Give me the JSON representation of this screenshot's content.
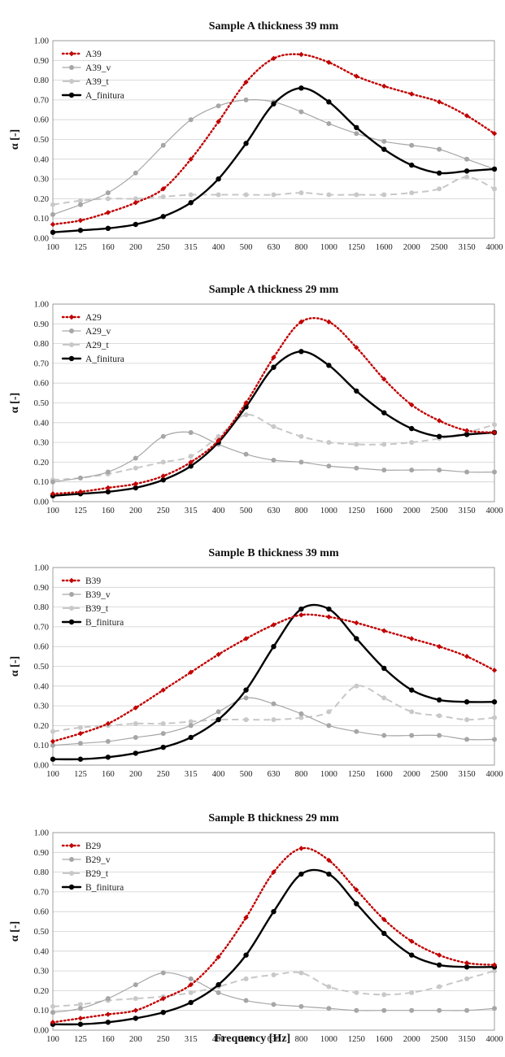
{
  "xaxis_title": "Frequency [Hz]",
  "chart_data": [
    {
      "type": "line",
      "title": "Sample A thickness 39 mm",
      "ylabel": "α [-]",
      "xlabel": "",
      "categories": [
        "100",
        "125",
        "160",
        "200",
        "250",
        "315",
        "400",
        "500",
        "630",
        "800",
        "1000",
        "1250",
        "1600",
        "2000",
        "2500",
        "3150",
        "4000"
      ],
      "ylim": [
        0,
        1.0
      ],
      "yticks": [
        "0.00",
        "0.10",
        "0.20",
        "0.30",
        "0.40",
        "0.50",
        "0.60",
        "0.70",
        "0.80",
        "0.90",
        "1.00"
      ],
      "grid": true,
      "legend": "top-left",
      "series": [
        {
          "name": "A39",
          "style": "dotted",
          "color": "#c00000",
          "values": [
            0.07,
            0.09,
            0.13,
            0.18,
            0.25,
            0.4,
            0.59,
            0.79,
            0.91,
            0.93,
            0.89,
            0.82,
            0.77,
            0.73,
            0.69,
            0.62,
            0.53
          ]
        },
        {
          "name": "A39_v",
          "style": "solid-thin",
          "color": "#a6a6a6",
          "values": [
            0.12,
            0.17,
            0.23,
            0.33,
            0.47,
            0.6,
            0.67,
            0.7,
            0.69,
            0.64,
            0.58,
            0.53,
            0.49,
            0.47,
            0.45,
            0.4,
            0.35
          ]
        },
        {
          "name": "A39_t",
          "style": "dashed",
          "color": "#c8c8c8",
          "values": [
            0.17,
            0.19,
            0.2,
            0.2,
            0.21,
            0.22,
            0.22,
            0.22,
            0.22,
            0.23,
            0.22,
            0.22,
            0.22,
            0.23,
            0.25,
            0.31,
            0.25
          ]
        },
        {
          "name": "A_finitura",
          "style": "solid-thick",
          "color": "#000000",
          "values": [
            0.03,
            0.04,
            0.05,
            0.07,
            0.11,
            0.18,
            0.3,
            0.48,
            0.68,
            0.76,
            0.69,
            0.56,
            0.45,
            0.37,
            0.33,
            0.34,
            0.35
          ]
        }
      ]
    },
    {
      "type": "line",
      "title": "Sample A thickness 29 mm",
      "ylabel": "α [-]",
      "xlabel": "",
      "categories": [
        "100",
        "125",
        "160",
        "200",
        "250",
        "315",
        "400",
        "500",
        "630",
        "800",
        "1000",
        "1250",
        "1600",
        "2000",
        "2500",
        "3150",
        "4000"
      ],
      "ylim": [
        0,
        1.0
      ],
      "yticks": [
        "0.00",
        "0.10",
        "0.20",
        "0.30",
        "0.40",
        "0.50",
        "0.60",
        "0.70",
        "0.80",
        "0.90",
        "1.00"
      ],
      "grid": true,
      "legend": "top-left",
      "series": [
        {
          "name": "A29",
          "style": "dotted",
          "color": "#c00000",
          "values": [
            0.04,
            0.05,
            0.07,
            0.09,
            0.13,
            0.2,
            0.31,
            0.5,
            0.73,
            0.91,
            0.91,
            0.78,
            0.62,
            0.49,
            0.41,
            0.36,
            0.35
          ]
        },
        {
          "name": "A29_v",
          "style": "solid-thin",
          "color": "#a6a6a6",
          "values": [
            0.1,
            0.12,
            0.15,
            0.22,
            0.33,
            0.35,
            0.29,
            0.24,
            0.21,
            0.2,
            0.18,
            0.17,
            0.16,
            0.16,
            0.16,
            0.15,
            0.15
          ]
        },
        {
          "name": "A29_t",
          "style": "dashed",
          "color": "#c8c8c8",
          "values": [
            0.11,
            0.12,
            0.14,
            0.17,
            0.2,
            0.23,
            0.33,
            0.44,
            0.38,
            0.33,
            0.3,
            0.29,
            0.29,
            0.3,
            0.32,
            0.35,
            0.39
          ]
        },
        {
          "name": "A_finitura",
          "style": "solid-thick",
          "color": "#000000",
          "values": [
            0.03,
            0.04,
            0.05,
            0.07,
            0.11,
            0.18,
            0.3,
            0.48,
            0.68,
            0.76,
            0.69,
            0.56,
            0.45,
            0.37,
            0.33,
            0.34,
            0.35
          ]
        }
      ]
    },
    {
      "type": "line",
      "title": "Sample B thickness 39 mm",
      "ylabel": "α [-]",
      "xlabel": "",
      "categories": [
        "100",
        "125",
        "160",
        "200",
        "250",
        "315",
        "400",
        "500",
        "630",
        "800",
        "1000",
        "1250",
        "1600",
        "2000",
        "2500",
        "3150",
        "4000"
      ],
      "ylim": [
        0,
        1.0
      ],
      "yticks": [
        "0.00",
        "0.10",
        "0.20",
        "0.30",
        "0.40",
        "0.50",
        "0.60",
        "0.70",
        "0.80",
        "0.90",
        "1.00"
      ],
      "grid": true,
      "legend": "top-left",
      "series": [
        {
          "name": "B39",
          "style": "dotted",
          "color": "#c00000",
          "values": [
            0.12,
            0.16,
            0.21,
            0.29,
            0.38,
            0.47,
            0.56,
            0.64,
            0.71,
            0.76,
            0.75,
            0.72,
            0.68,
            0.64,
            0.6,
            0.55,
            0.48
          ]
        },
        {
          "name": "B39_v",
          "style": "solid-thin",
          "color": "#a6a6a6",
          "values": [
            0.1,
            0.11,
            0.12,
            0.14,
            0.16,
            0.2,
            0.27,
            0.34,
            0.31,
            0.26,
            0.2,
            0.17,
            0.15,
            0.15,
            0.15,
            0.13,
            0.13
          ]
        },
        {
          "name": "B39_t",
          "style": "dashed",
          "color": "#c8c8c8",
          "values": [
            0.17,
            0.19,
            0.2,
            0.21,
            0.21,
            0.22,
            0.23,
            0.23,
            0.23,
            0.24,
            0.27,
            0.4,
            0.34,
            0.27,
            0.25,
            0.23,
            0.24
          ]
        },
        {
          "name": "B_finitura",
          "style": "solid-thick",
          "color": "#000000",
          "values": [
            0.03,
            0.03,
            0.04,
            0.06,
            0.09,
            0.14,
            0.23,
            0.38,
            0.6,
            0.79,
            0.79,
            0.64,
            0.49,
            0.38,
            0.33,
            0.32,
            0.32
          ]
        }
      ]
    },
    {
      "type": "line",
      "title": "Sample B thickness 29 mm",
      "ylabel": "α [-]",
      "xlabel": "",
      "categories": [
        "100",
        "125",
        "160",
        "200",
        "250",
        "315",
        "400",
        "500",
        "630",
        "800",
        "1000",
        "1250",
        "1600",
        "2000",
        "2500",
        "3150",
        "4000"
      ],
      "ylim": [
        0,
        1.0
      ],
      "yticks": [
        "0.00",
        "0.10",
        "0.20",
        "0.30",
        "0.40",
        "0.50",
        "0.60",
        "0.70",
        "0.80",
        "0.90",
        "1.00"
      ],
      "grid": true,
      "legend": "top-left",
      "series": [
        {
          "name": "B29",
          "style": "dotted",
          "color": "#c00000",
          "values": [
            0.04,
            0.06,
            0.08,
            0.1,
            0.16,
            0.23,
            0.37,
            0.57,
            0.8,
            0.92,
            0.86,
            0.71,
            0.56,
            0.45,
            0.38,
            0.34,
            0.33
          ]
        },
        {
          "name": "B29_v",
          "style": "solid-thin",
          "color": "#a6a6a6",
          "values": [
            0.09,
            0.11,
            0.16,
            0.23,
            0.29,
            0.26,
            0.19,
            0.15,
            0.13,
            0.12,
            0.11,
            0.1,
            0.1,
            0.1,
            0.1,
            0.1,
            0.11
          ]
        },
        {
          "name": "B29_t",
          "style": "dashed",
          "color": "#c8c8c8",
          "values": [
            0.12,
            0.13,
            0.15,
            0.16,
            0.17,
            0.19,
            0.22,
            0.26,
            0.28,
            0.29,
            0.22,
            0.19,
            0.18,
            0.19,
            0.22,
            0.26,
            0.3
          ]
        },
        {
          "name": "B_finitura",
          "style": "solid-thick",
          "color": "#000000",
          "values": [
            0.03,
            0.03,
            0.04,
            0.06,
            0.09,
            0.14,
            0.23,
            0.38,
            0.6,
            0.79,
            0.79,
            0.64,
            0.49,
            0.38,
            0.33,
            0.32,
            0.32
          ]
        }
      ]
    }
  ]
}
